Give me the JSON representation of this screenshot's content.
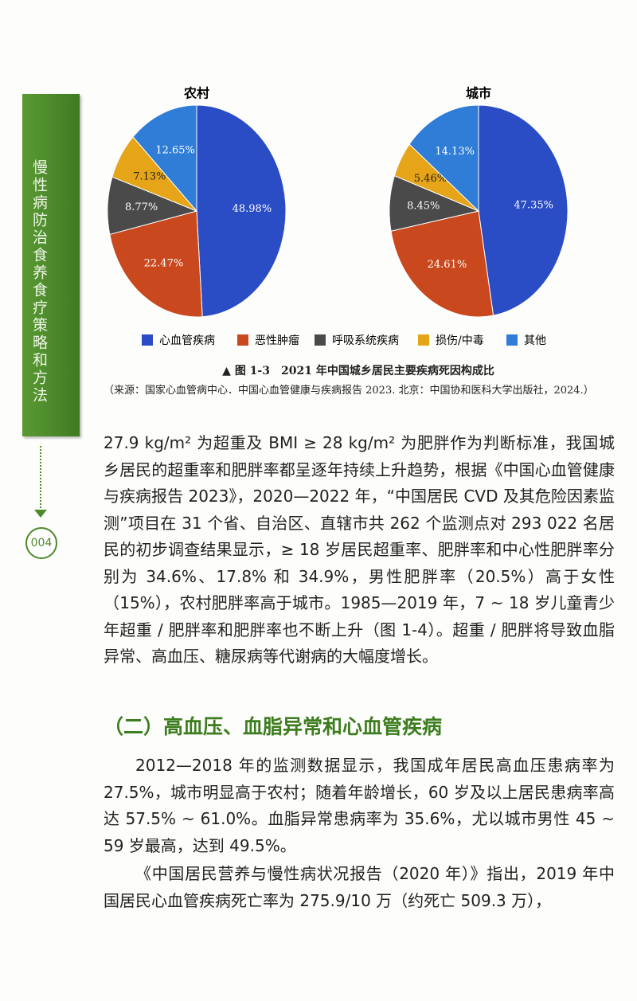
{
  "chart_data": [
    {
      "type": "pie",
      "title": "农村",
      "categories": [
        "心血管疾病",
        "恶性肿瘤",
        "呼吸系统疾病",
        "损伤/中毒",
        "其他"
      ],
      "values": [
        48.98,
        22.47,
        8.77,
        7.13,
        12.65
      ],
      "value_labels": [
        "48.98%",
        "22.47%",
        "8.77%",
        "7.13%",
        "12.65%"
      ],
      "colors": [
        "#2a4cc4",
        "#c9481d",
        "#4a4a4a",
        "#e6a518",
        "#2f7dd6"
      ]
    },
    {
      "type": "pie",
      "title": "城市",
      "categories": [
        "心血管疾病",
        "恶性肿瘤",
        "呼吸系统疾病",
        "损伤/中毒",
        "其他"
      ],
      "values": [
        47.35,
        24.61,
        8.45,
        5.46,
        14.13
      ],
      "value_labels": [
        "47.35%",
        "24.61%",
        "8.45%",
        "5.46%",
        "14.13%"
      ],
      "colors": [
        "#2a4cc4",
        "#c9481d",
        "#4a4a4a",
        "#e6a518",
        "#2f7dd6"
      ]
    }
  ],
  "document": {
    "sidebar_title": "慢性病防治食养食疗策略和方法",
    "page_number": "004",
    "figure_caption": "▲ 图 1-3　2021 年中国城乡居民主要疾病死因构成比",
    "figure_source": "（来源：国家心血管病中心．中国心血管健康与疾病报告 2023. 北京：中国协和医科大学出版社，2024.）",
    "paragraphs": [
      "27.9 kg/m² 为超重及 BMI ≥ 28 kg/m² 为肥胖作为判断标准，我国城乡居民的超重率和肥胖率都呈逐年持续上升趋势，根据《中国心血管健康与疾病报告 2023》，2020—2022 年，“中国居民 CVD 及其危险因素监测”项目在 31 个省、自治区、直辖市共 262 个监测点对 293 022 名居民的初步调查结果显示，≥ 18 岁居民超重率、肥胖率和中心性肥胖率分别为 34.6%、17.8% 和 34.9%，男性肥胖率（20.5%）高于女性（15%），农村肥胖率高于城市。1985—2019 年，7 ~ 18 岁儿童青少年超重 / 肥胖率和肥胖率也不断上升（图 1-4）。超重 / 肥胖将导致血脂异常、高血压、糖尿病等代谢病的大幅度增长。",
      "2012—2018 年的监测数据显示，我国成年居民高血压患病率为 27.5%，城市明显高于农村；随着年龄增长，60 岁及以上居民患病率高达 57.5% ~ 61.0%。血脂异常患病率为 35.6%，尤以城市男性 45 ~ 59 岁最高，达到 49.5%。",
      "《中国居民营养与慢性病状况报告（2020 年）》指出，2019 年中国居民心血管疾病死亡率为 275.9/10 万（约死亡 509.3 万），"
    ],
    "section_heading": "（二）高血压、血脂异常和心血管疾病"
  }
}
